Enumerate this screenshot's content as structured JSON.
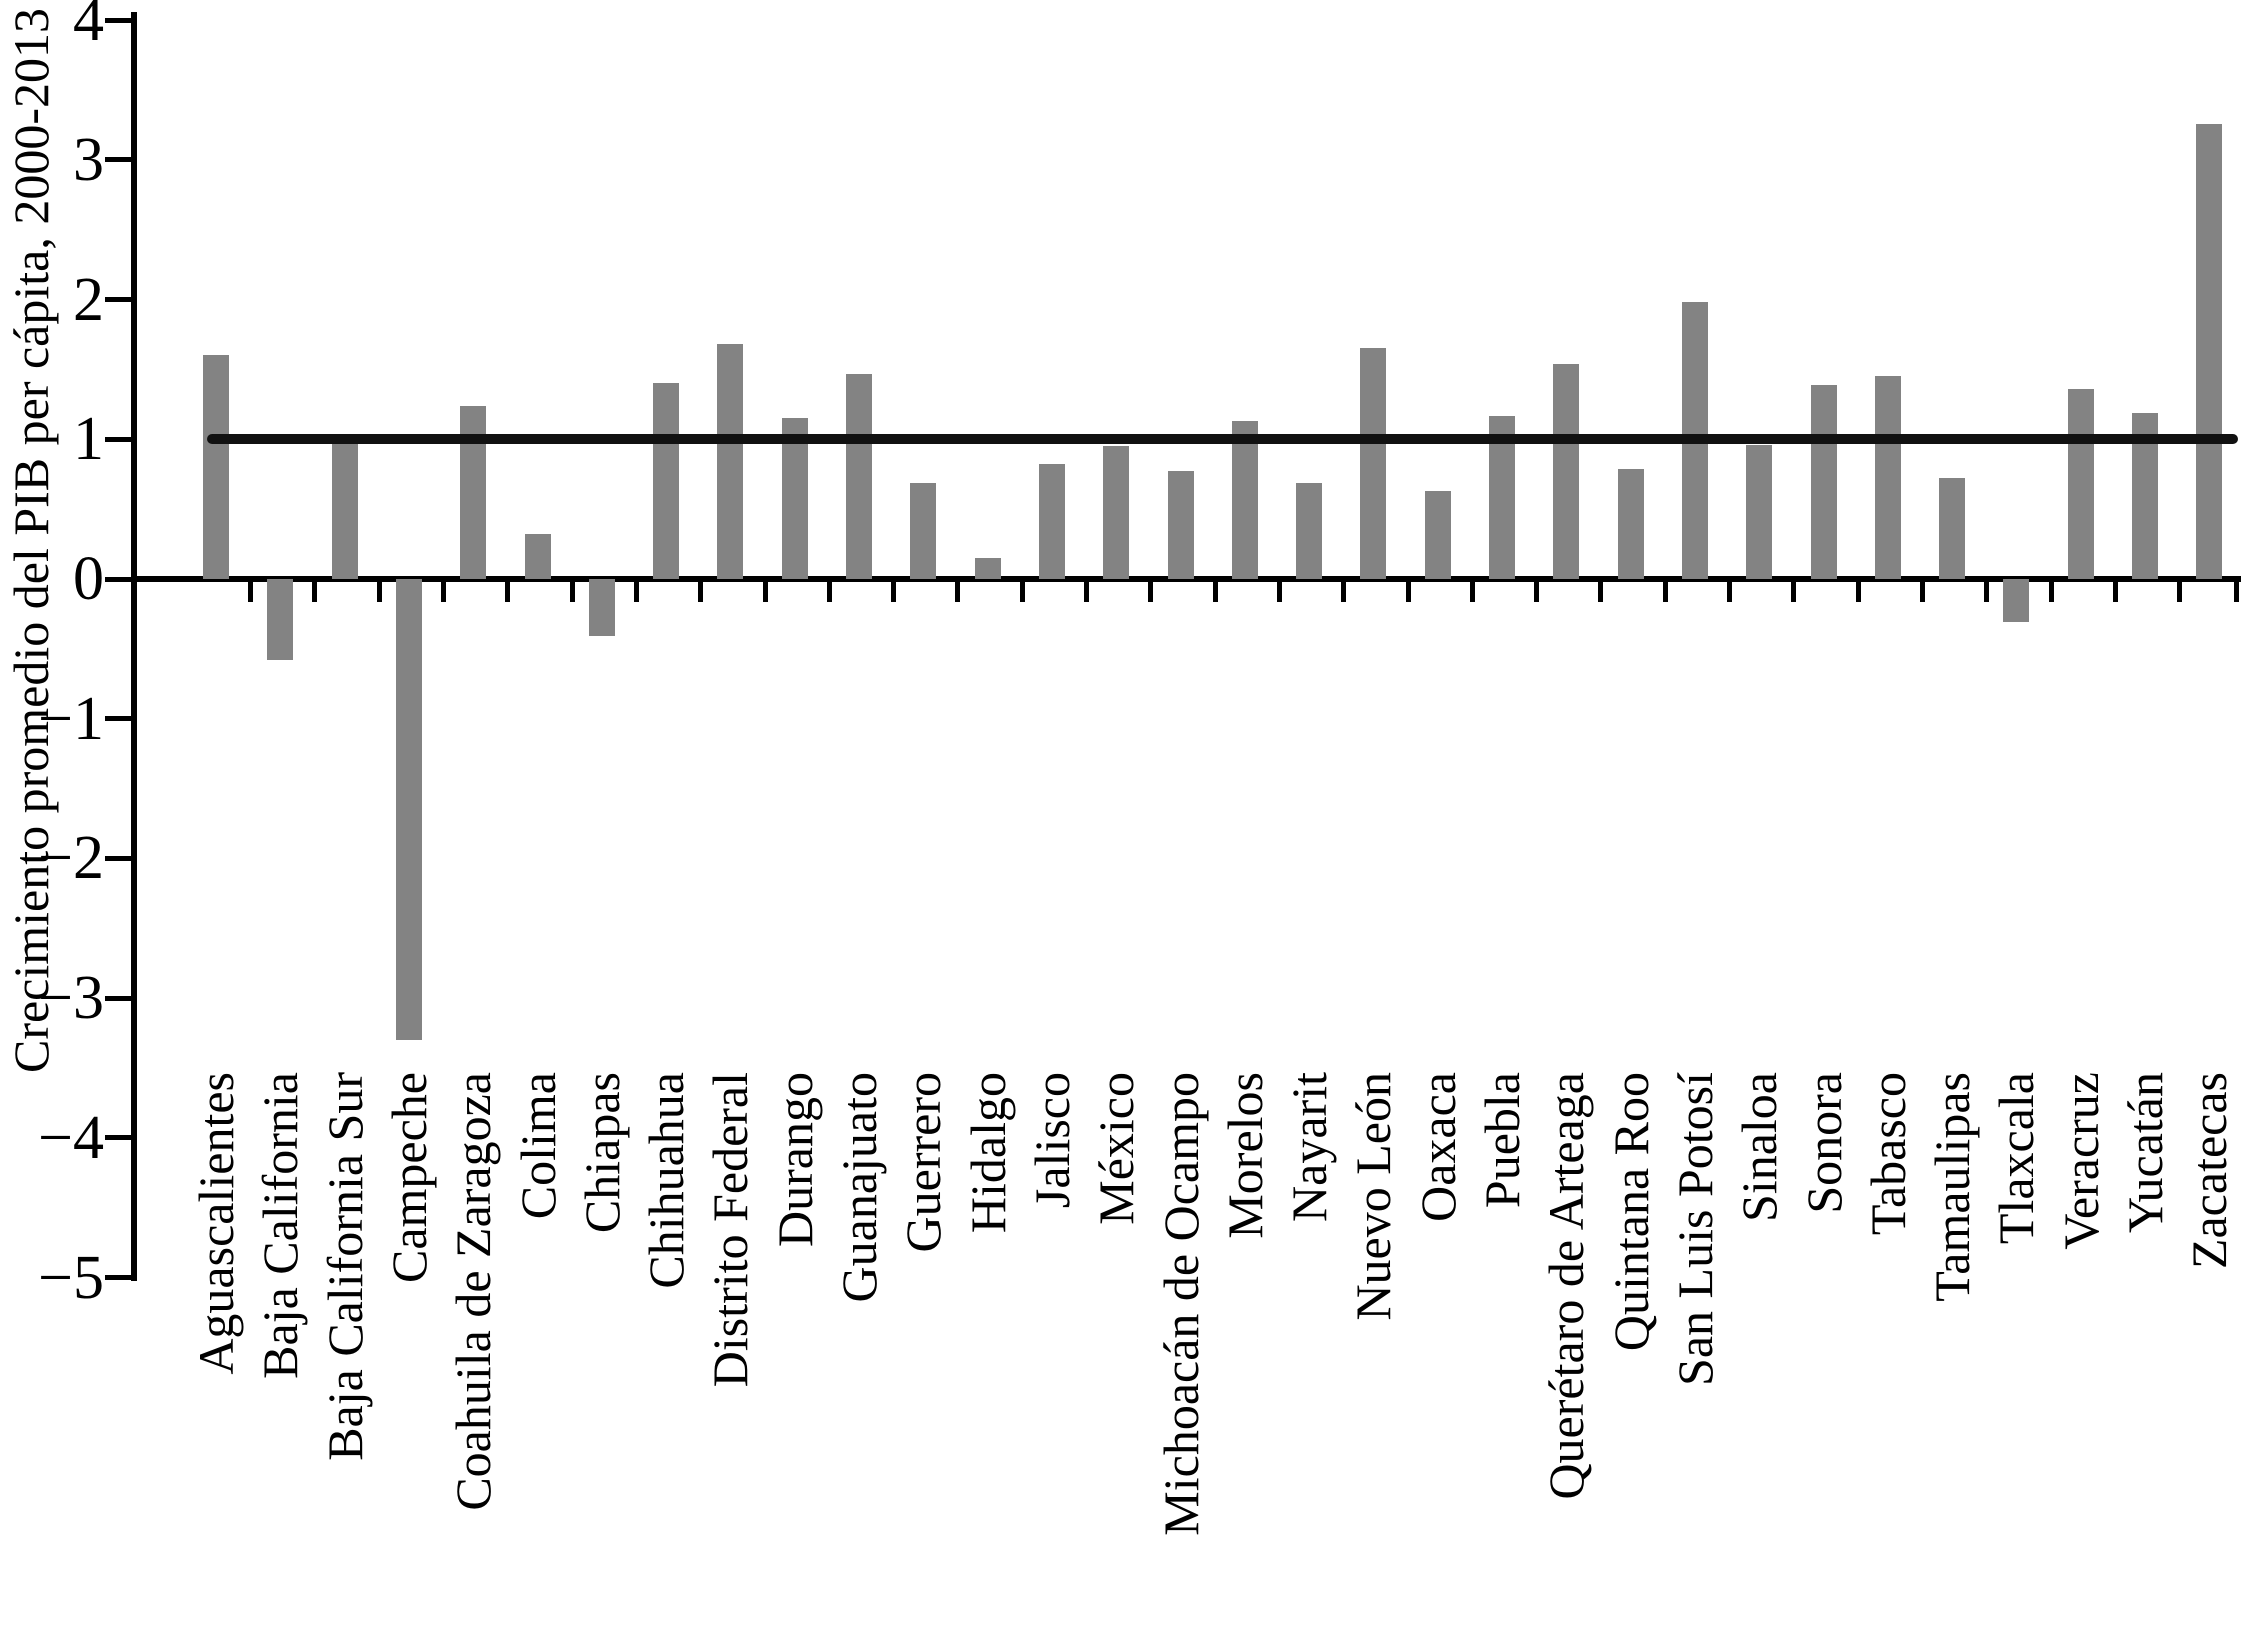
{
  "chart_data": {
    "type": "bar",
    "title": "",
    "ylabel": "Crecimiento promedio del PIB per cápita, 2000-2013",
    "xlabel": "",
    "categories": [
      "Aguascalientes",
      "Baja California",
      "Baja California Sur",
      "Campeche",
      "Coahuila de Zaragoza",
      "Colima",
      "Chiapas",
      "Chihuahua",
      "Distrito Federal",
      "Durango",
      "Guanajuato",
      "Guerrero",
      "Hidalgo",
      "Jalisco",
      "México",
      "Michoacán de Ocampo",
      "Morelos",
      "Nayarit",
      "Nuevo León",
      "Oaxaca",
      "Puebla",
      "Querétaro de Arteaga",
      "Quintana Roo",
      "San Luis Potosí",
      "Sinaloa",
      "Sonora",
      "Tabasco",
      "Tamaulipas",
      "Tlaxcala",
      "Veracruz",
      "Yucatán",
      "Zacatecas"
    ],
    "values": [
      1.6,
      -0.58,
      0.98,
      -3.3,
      1.24,
      0.32,
      -0.41,
      1.4,
      1.68,
      1.15,
      1.47,
      0.69,
      0.15,
      0.82,
      0.95,
      0.77,
      1.13,
      0.69,
      1.65,
      0.63,
      1.17,
      1.54,
      0.79,
      1.98,
      0.96,
      1.39,
      1.45,
      0.72,
      -0.31,
      1.36,
      1.19,
      3.26
    ],
    "yticks": [
      4,
      3,
      2,
      1,
      0,
      -1,
      -2,
      -3,
      -4,
      -5
    ],
    "ylim": [
      -5,
      4
    ],
    "reference_line_y": 1,
    "bar_color": "#838383",
    "axis_color": "#000000",
    "reference_line_color": "#111111",
    "grid": false,
    "legend": false
  }
}
